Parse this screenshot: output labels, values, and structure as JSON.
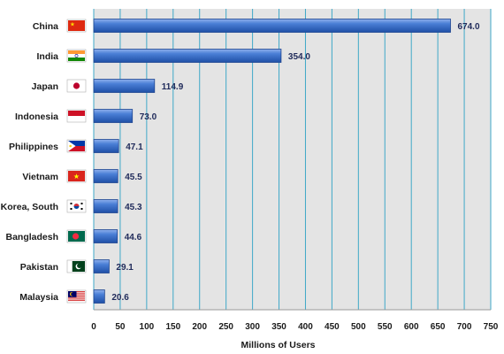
{
  "chart_data": {
    "type": "bar",
    "orientation": "horizontal",
    "categories": [
      "China",
      "India",
      "Japan",
      "Indonesia",
      "Philippines",
      "Vietnam",
      "Korea, South",
      "Bangladesh",
      "Pakistan",
      "Malaysia"
    ],
    "values": [
      674.0,
      354.0,
      114.9,
      73.0,
      47.1,
      45.5,
      45.3,
      44.6,
      29.1,
      20.6
    ],
    "value_labels": [
      "674.0",
      "354.0",
      "114.9",
      "73.0",
      "47.1",
      "45.5",
      "45.3",
      "44.6",
      "29.1",
      "20.6"
    ],
    "flags": [
      "china-flag",
      "india-flag",
      "japan-flag",
      "indonesia-flag",
      "philippines-flag",
      "vietnam-flag",
      "south-korea-flag",
      "bangladesh-flag",
      "pakistan-flag",
      "malaysia-flag"
    ],
    "title": "",
    "xlabel": "Millions of Users",
    "ylabel": "",
    "xlim": [
      0,
      750
    ],
    "xticks": [
      "0",
      "50",
      "100",
      "150",
      "200",
      "250",
      "300",
      "350",
      "400",
      "450",
      "500",
      "550",
      "600",
      "650",
      "700",
      "750"
    ],
    "grid": "vertical",
    "bar_color": "#3d6fc4",
    "plot_background": "#e4e4e4",
    "gridline_color": "#3fa8c8"
  }
}
